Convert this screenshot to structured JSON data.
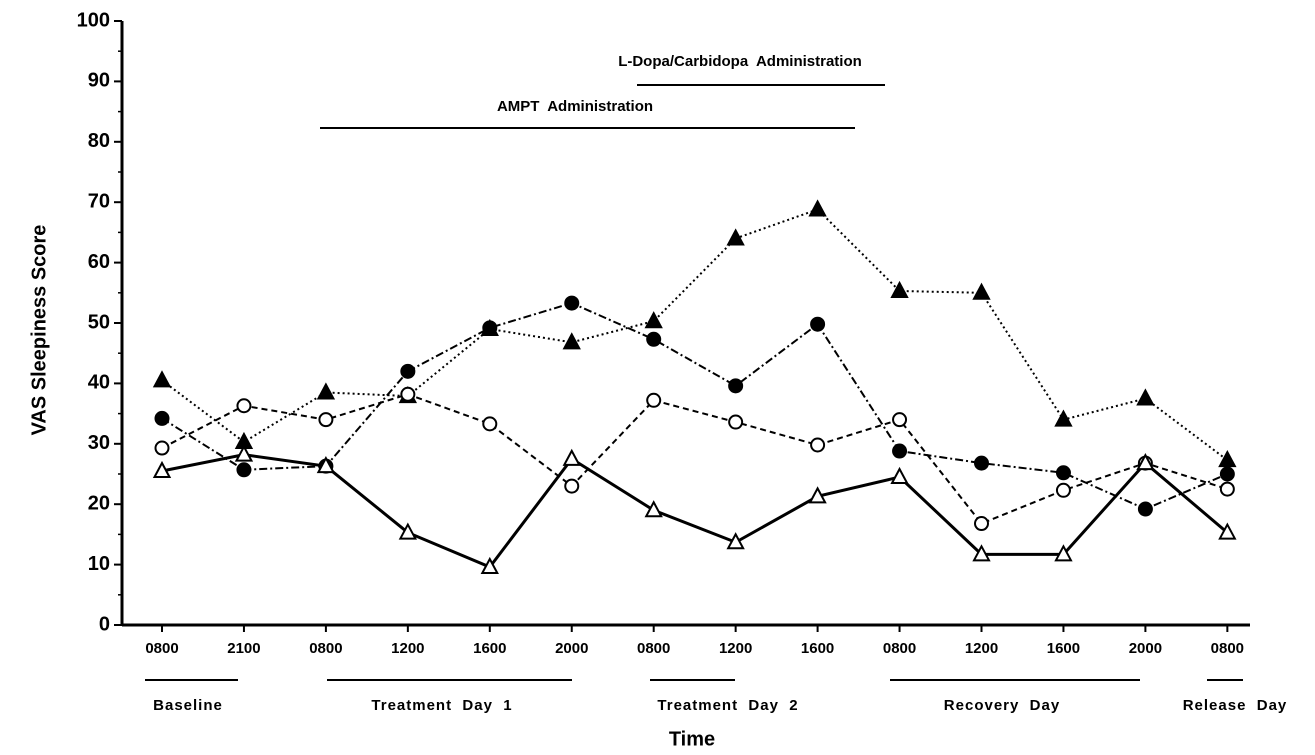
{
  "chart_data": {
    "type": "line",
    "x_label": "Time",
    "y_label": "VAS Sleepiness Score",
    "categories": [
      "0800",
      "2100",
      "0800",
      "1200",
      "1600",
      "2000",
      "0800",
      "1200",
      "1600",
      "0800",
      "1200",
      "1600",
      "2000",
      "0800"
    ],
    "groups": [
      "Baseline",
      "Treatment  Day  1",
      "Treatment  Day  2",
      "Recovery  Day",
      "Release  Day"
    ],
    "annotations": [
      "L-Dopa/Carbidopa  Administration",
      "AMPT  Administration"
    ],
    "ylim": [
      0,
      100
    ],
    "yticks": [
      0,
      10,
      20,
      30,
      40,
      50,
      60,
      70,
      80,
      90,
      100
    ],
    "series": [
      {
        "color": "#000000",
        "marker": "triangle",
        "filled": true,
        "line_style": "dotted",
        "values": [
          40.5,
          30.3,
          38.5,
          37.9,
          49,
          46.8,
          50.3,
          64,
          68.8,
          55.3,
          55,
          34,
          37.5,
          27.3
        ]
      },
      {
        "color": "#000000",
        "marker": "circle",
        "filled": false,
        "line_style": "dashed",
        "values": [
          29.3,
          36.3,
          34,
          38.2,
          33.3,
          23,
          37.2,
          33.6,
          29.8,
          34,
          16.8,
          22.3,
          26.8,
          22.5
        ]
      },
      {
        "color": "#000000",
        "marker": "circle",
        "filled": true,
        "line_style": "dashdot",
        "values": [
          34.2,
          25.7,
          26.3,
          42,
          49.2,
          53.3,
          47.3,
          39.6,
          49.8,
          28.8,
          26.8,
          25.2,
          19.2,
          25
        ]
      },
      {
        "color": "#000000",
        "marker": "triangle",
        "filled": false,
        "line_style": "solid",
        "values": [
          25.5,
          28.2,
          26.3,
          15.3,
          9.6,
          27.5,
          19,
          13.7,
          21.3,
          24.5,
          11.7,
          11.7,
          26.8,
          15.3
        ]
      }
    ]
  }
}
